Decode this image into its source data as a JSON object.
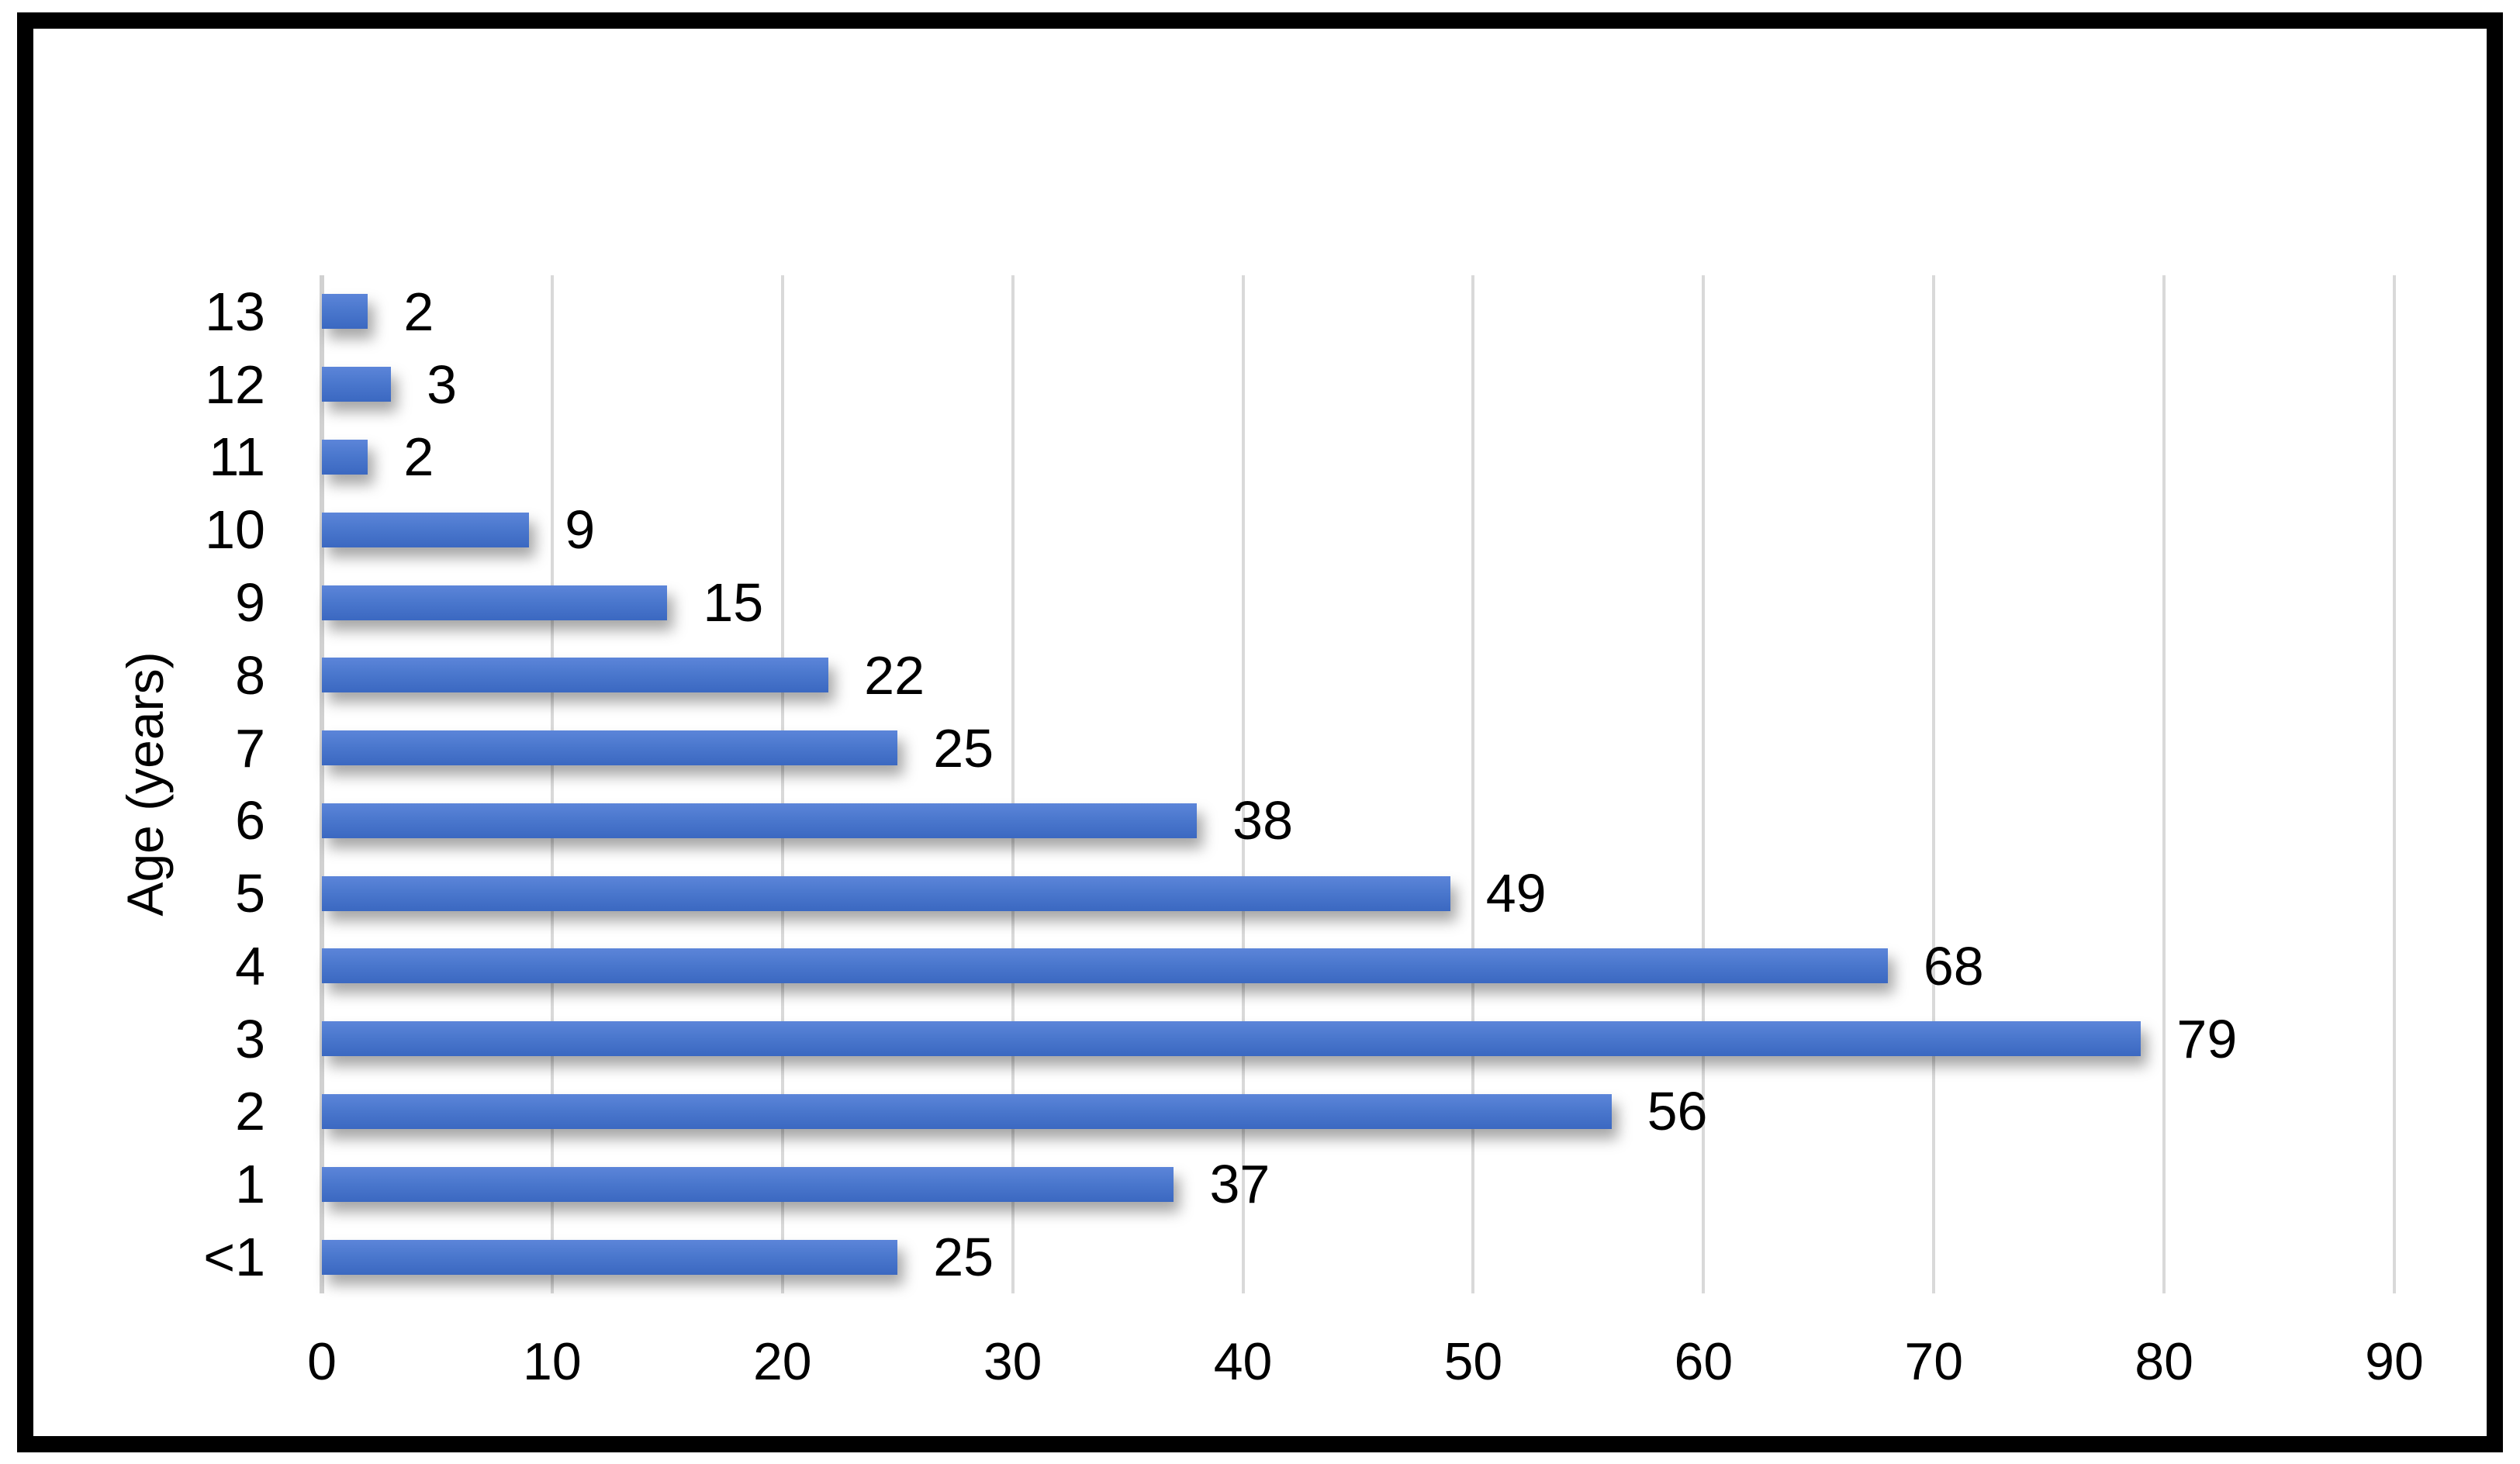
{
  "figure": {
    "background": "#ffffff",
    "frame_color": "#000000"
  },
  "chart_data": {
    "type": "bar",
    "orientation": "horizontal",
    "title": "",
    "xlabel": "",
    "ylabel": "Age (years)",
    "categories": [
      "13",
      "12",
      "11",
      "10",
      "9",
      "8",
      "7",
      "6",
      "5",
      "4",
      "3",
      "2",
      "1",
      "<1"
    ],
    "values": [
      2,
      3,
      2,
      9,
      15,
      22,
      25,
      38,
      49,
      68,
      79,
      56,
      37,
      25
    ],
    "xlim": [
      0,
      90
    ],
    "xticks": [
      0,
      10,
      20,
      30,
      40,
      50,
      60,
      70,
      80,
      90
    ],
    "grid": "vertical",
    "legend": "none",
    "data_labels": true,
    "colors": {
      "bar": "#4472C4",
      "bar_gradient_top": "#5C85D9",
      "bar_gradient_bottom": "#3B68C1",
      "gridline": "#D9D9D9",
      "zero_line": "#D1D1D1",
      "text": "#000000"
    }
  }
}
